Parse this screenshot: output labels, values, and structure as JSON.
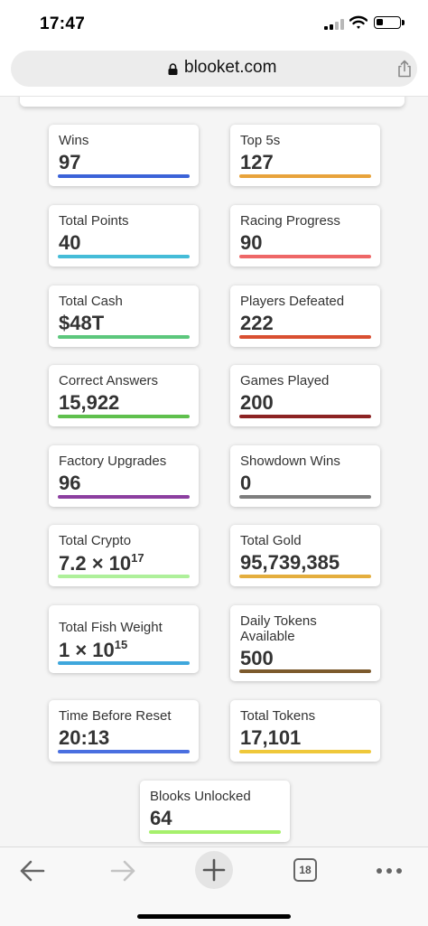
{
  "status_bar": {
    "time": "17:47",
    "icons": [
      "cellular-signal-icon",
      "wifi-icon",
      "battery-icon"
    ]
  },
  "browser": {
    "url": "blooket.com",
    "tab_count": "18",
    "icons": [
      "lock-icon",
      "share-icon",
      "back-arrow-icon",
      "forward-arrow-icon",
      "new-tab-plus-icon",
      "tabs-icon",
      "more-dots-icon"
    ]
  },
  "stats": [
    {
      "label": "Wins",
      "value": "97",
      "color": "#3b63d8"
    },
    {
      "label": "Top 5s",
      "value": "127",
      "color": "#e8a33b"
    },
    {
      "label": "Total Points",
      "value": "40",
      "color": "#45bcd8"
    },
    {
      "label": "Racing Progress",
      "value": "90",
      "color": "#ee6767"
    },
    {
      "label": "Total Cash",
      "value": "$48T",
      "color": "#5cc77c"
    },
    {
      "label": "Players Defeated",
      "value": "222",
      "color": "#d94f31"
    },
    {
      "label": "Correct Answers",
      "value": "15,922",
      "color": "#5fc04d"
    },
    {
      "label": "Games Played",
      "value": "200",
      "color": "#8c2323"
    },
    {
      "label": "Factory Upgrades",
      "value": "96",
      "color": "#8c3fa0"
    },
    {
      "label": "Showdown Wins",
      "value": "0",
      "color": "#7e7e7e"
    },
    {
      "label": "Total Crypto",
      "value": "7.2 × 10",
      "exp": "17",
      "color": "#aef09a"
    },
    {
      "label": "Total Gold",
      "value": "95,739,385",
      "color": "#e4ae3e"
    },
    {
      "label": "Total Fish Weight",
      "value": "1 × 10",
      "exp": "15",
      "color": "#3fa7dc"
    },
    {
      "label": "Daily Tokens Available",
      "value": "500",
      "color": "#7c5a2d"
    },
    {
      "label": "Time Before Reset",
      "value": "20:13",
      "color": "#4a6fe0"
    },
    {
      "label": "Total Tokens",
      "value": "17,101",
      "color": "#efc83a"
    },
    {
      "label": "Blooks Unlocked",
      "value": "64",
      "color": "#a6f06c"
    }
  ]
}
